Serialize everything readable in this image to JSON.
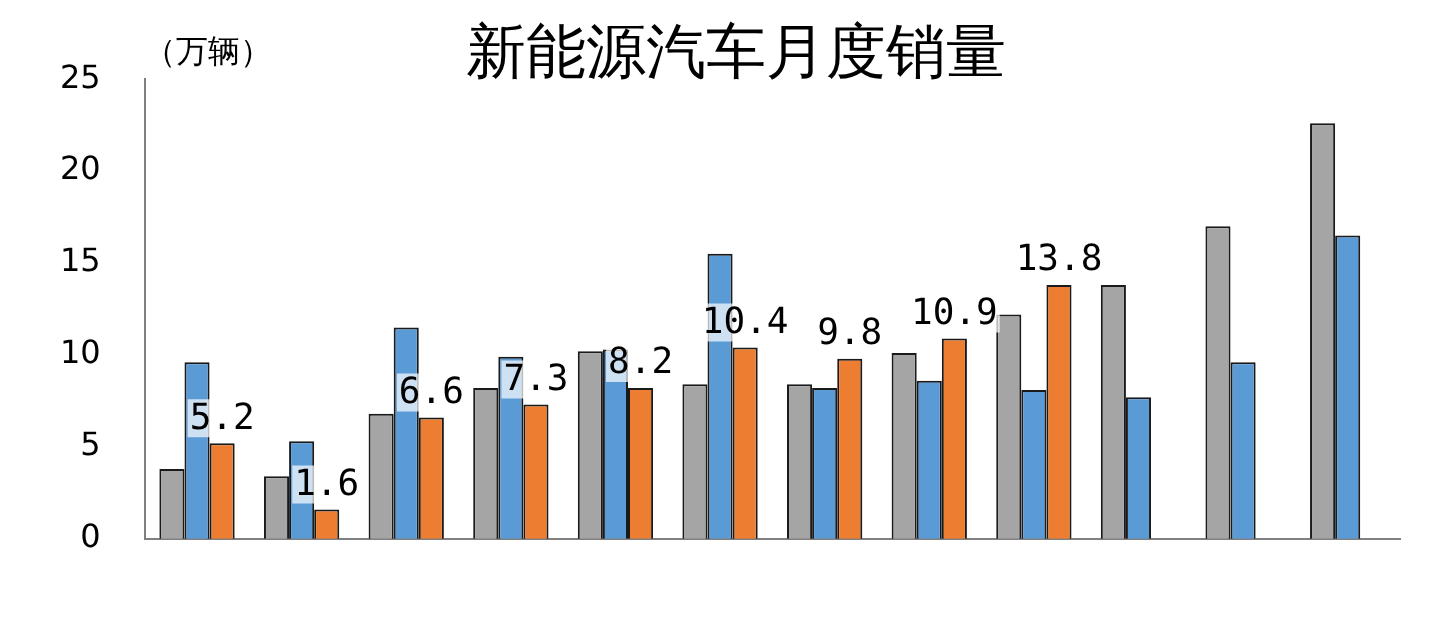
{
  "chart_data": {
    "type": "bar",
    "title": "新能源汽车月度销量",
    "ylabel": "（万辆）",
    "categories": [
      null,
      null,
      null,
      null,
      null,
      null,
      null,
      null,
      null,
      null,
      null,
      null
    ],
    "series": [
      {
        "color": "#a5a5a5",
        "values": [
          3.8,
          3.4,
          6.8,
          8.2,
          10.2,
          8.4,
          8.4,
          10.1,
          12.2,
          13.8,
          17.0,
          22.6
        ]
      },
      {
        "color": "#5b9bd5",
        "values": [
          9.6,
          5.3,
          11.5,
          9.9,
          10.3,
          15.5,
          8.2,
          8.6,
          8.1,
          7.7,
          9.6,
          16.5
        ]
      },
      {
        "color": "#ed7d31",
        "values": [
          5.2,
          1.6,
          6.6,
          7.3,
          8.2,
          10.4,
          9.8,
          10.9,
          13.8,
          null,
          null,
          null
        ],
        "value_labels": [
          "5.2",
          "1.6",
          "6.6",
          "7.3",
          "8.2",
          "10.4",
          "9.8",
          "10.9",
          "13.8",
          null,
          null,
          null
        ]
      }
    ],
    "ylim": [
      0,
      25
    ],
    "yticks": [
      0,
      5,
      10,
      15,
      20,
      25
    ],
    "tick_labels": "y",
    "grid": false,
    "legend": false
  }
}
